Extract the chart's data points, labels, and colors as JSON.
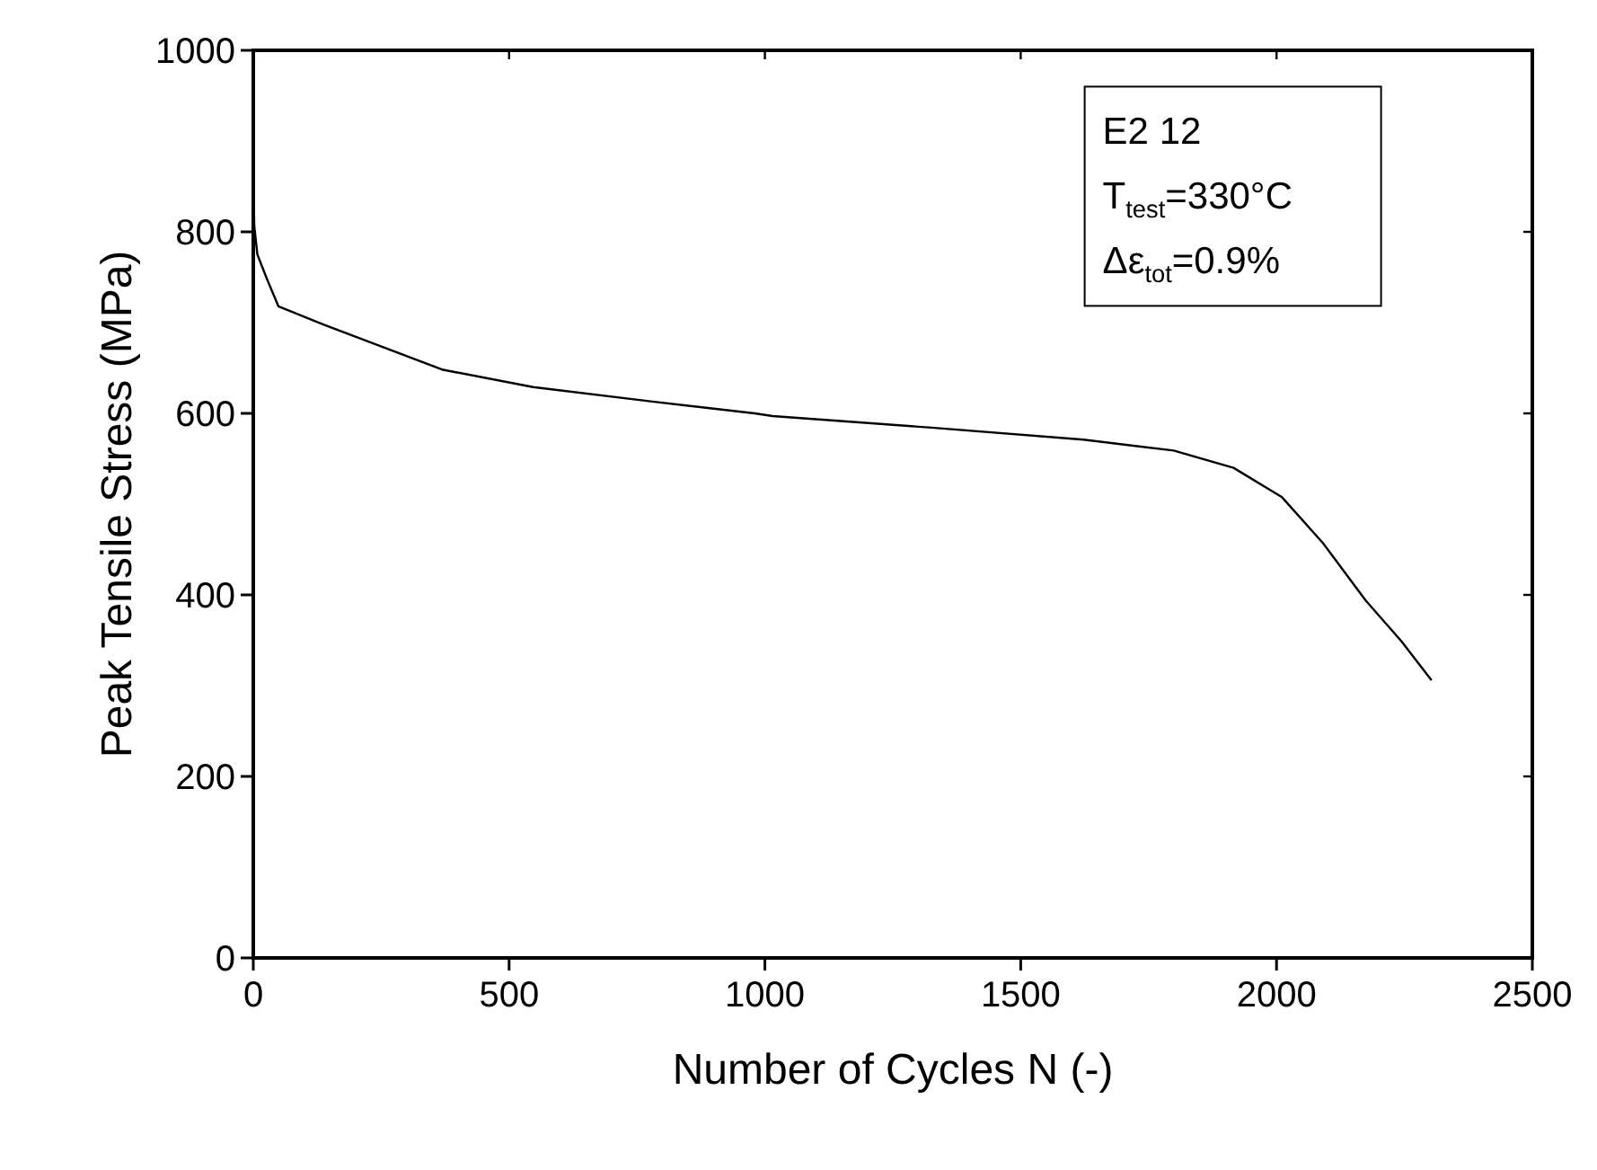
{
  "chart_data": {
    "type": "line",
    "xlabel": "Number of Cycles N (-)",
    "ylabel": "Peak Tensile Stress (MPa)",
    "x": [
      0,
      2,
      8,
      26,
      49,
      137,
      254,
      371,
      547,
      780,
      980,
      1015,
      1331,
      1623,
      1799,
      1916,
      2010,
      2091,
      2174,
      2244,
      2303
    ],
    "series": [
      {
        "color": "#000000",
        "values": [
          855,
          806,
          775,
          749,
          718,
          698,
          673,
          648,
          629,
          613,
          600,
          597,
          584,
          571,
          559,
          540,
          508,
          457,
          394,
          349,
          306
        ]
      }
    ],
    "xlim": [
      0,
      2500
    ],
    "xticks": [
      0,
      500,
      1000,
      1500,
      2000,
      2500
    ],
    "ylim": [
      0,
      1000
    ],
    "yticks": [
      0,
      200,
      400,
      600,
      800,
      1000
    ],
    "grid": false,
    "line_style": "solid",
    "annotations": [
      "E2 12",
      "T$_{test}$=330°C",
      "Δε$_{tot}$=0.9%"
    ]
  }
}
